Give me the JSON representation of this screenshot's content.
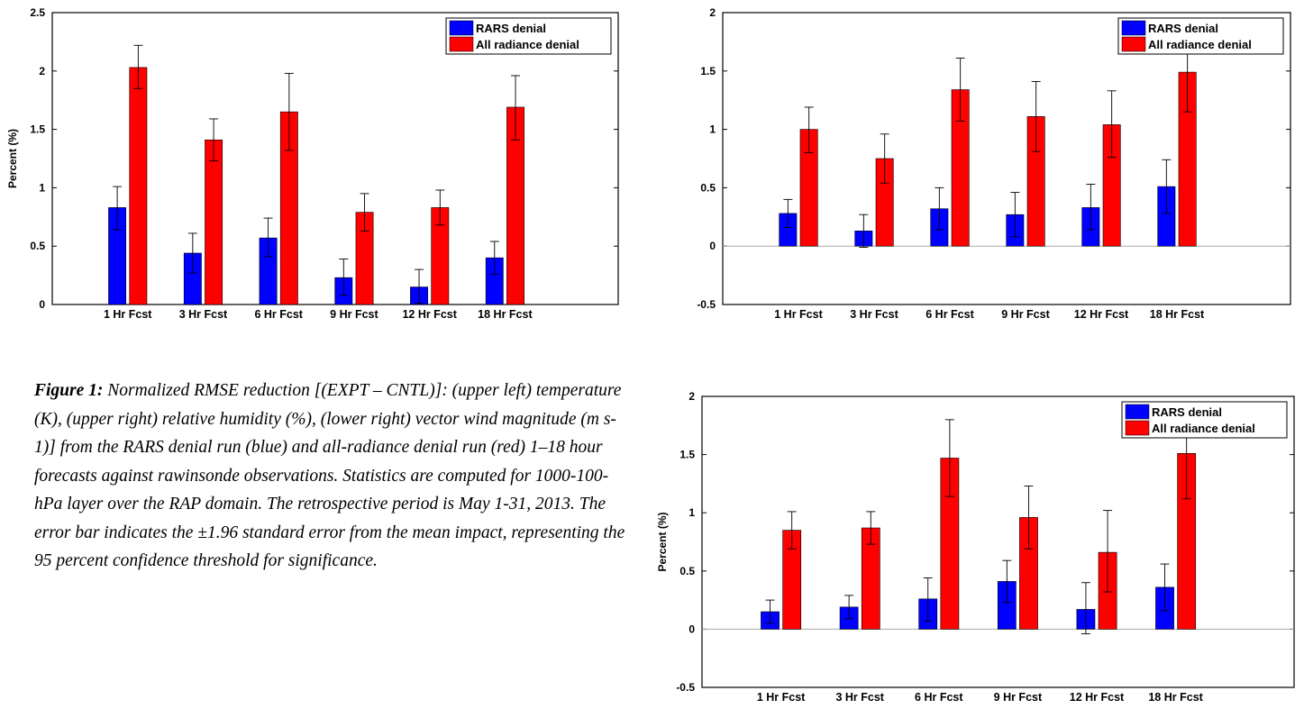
{
  "caption": {
    "label": "Figure 1:",
    "text": " Normalized RMSE reduction [(EXPT – CNTL)]: (upper left) temperature (K), (upper right) relative humidity (%), (lower right) vector wind magnitude (m s-1)] from the RARS denial run (blue) and all-radiance denial run (red) 1–18 hour forecasts against rawinsonde observations. Statistics are computed for 1000-100-hPa layer over the RAP domain. The retrospective period is May 1-31, 2013. The error bar indicates the ±1.96 standard error from the mean impact, representing the 95 percent confidence threshold for significance."
  },
  "colors": {
    "rars": "#0000ff",
    "all": "#ff0000",
    "axis": "#000000",
    "zero_line": "#aaaaaa"
  },
  "chart_data": [
    {
      "type": "bar",
      "categories": [
        "1 Hr Fcst",
        "3 Hr Fcst",
        "6 Hr Fcst",
        "9 Hr Fcst",
        "12 Hr Fcst",
        "18 Hr Fcst"
      ],
      "ylabel": "Percent (%)",
      "ylim": [
        0,
        2.5
      ],
      "yticks": [
        0,
        0.5,
        1,
        1.5,
        2,
        2.5
      ],
      "ytick_labels": [
        "0",
        "0.5",
        "1",
        "1.5",
        "2",
        "2.5"
      ],
      "legend_position": "top-right",
      "error_bars": true,
      "series": [
        {
          "name": "RARS denial",
          "values": [
            0.83,
            0.44,
            0.57,
            0.23,
            0.15,
            0.4
          ],
          "err_low": [
            0.64,
            0.27,
            0.41,
            0.08,
            0.01,
            0.26
          ],
          "err_high": [
            1.01,
            0.61,
            0.74,
            0.39,
            0.3,
            0.54
          ]
        },
        {
          "name": "All radiance denial",
          "values": [
            2.03,
            1.41,
            1.65,
            0.79,
            0.83,
            1.69
          ],
          "err_low": [
            1.85,
            1.23,
            1.32,
            0.63,
            0.68,
            1.41
          ],
          "err_high": [
            2.22,
            1.59,
            1.98,
            0.95,
            0.98,
            1.96
          ]
        }
      ]
    },
    {
      "type": "bar",
      "categories": [
        "1 Hr Fcst",
        "3 Hr Fcst",
        "6 Hr Fcst",
        "9 Hr Fcst",
        "12 Hr Fcst",
        "18 Hr Fcst"
      ],
      "ylabel": "",
      "ylim": [
        -0.5,
        2
      ],
      "yticks": [
        -0.5,
        0,
        0.5,
        1,
        1.5,
        2
      ],
      "ytick_labels": [
        "-0.5",
        "0",
        "0.5",
        "1",
        "1.5",
        "2"
      ],
      "legend_position": "top-right",
      "error_bars": true,
      "series": [
        {
          "name": "RARS denial",
          "values": [
            0.28,
            0.13,
            0.32,
            0.27,
            0.33,
            0.51
          ],
          "err_low": [
            0.16,
            -0.01,
            0.14,
            0.08,
            0.14,
            0.28
          ],
          "err_high": [
            0.4,
            0.27,
            0.5,
            0.46,
            0.53,
            0.74
          ]
        },
        {
          "name": "All radiance denial",
          "values": [
            1.0,
            0.75,
            1.34,
            1.11,
            1.04,
            1.49
          ],
          "err_low": [
            0.8,
            0.54,
            1.07,
            0.81,
            0.76,
            1.15
          ],
          "err_high": [
            1.19,
            0.96,
            1.61,
            1.41,
            1.33,
            1.84
          ]
        }
      ]
    },
    {
      "type": "bar",
      "categories": [
        "1 Hr Fcst",
        "3 Hr Fcst",
        "6 Hr Fcst",
        "9 Hr Fcst",
        "12 Hr Fcst",
        "18 Hr Fcst"
      ],
      "ylabel": "Percent (%)",
      "ylim": [
        -0.5,
        2
      ],
      "yticks": [
        -0.5,
        0,
        0.5,
        1,
        1.5,
        2
      ],
      "ytick_labels": [
        "-0.5",
        "0",
        "0.5",
        "1",
        "1.5",
        "2"
      ],
      "legend_position": "top-right",
      "error_bars": true,
      "series": [
        {
          "name": "RARS denial",
          "values": [
            0.15,
            0.19,
            0.26,
            0.41,
            0.17,
            0.36
          ],
          "err_low": [
            0.05,
            0.09,
            0.07,
            0.23,
            -0.04,
            0.16
          ],
          "err_high": [
            0.25,
            0.29,
            0.44,
            0.59,
            0.4,
            0.56
          ]
        },
        {
          "name": "All radiance denial",
          "values": [
            0.85,
            0.87,
            1.47,
            0.96,
            0.66,
            1.51
          ],
          "err_low": [
            0.69,
            0.73,
            1.14,
            0.69,
            0.32,
            1.12
          ],
          "err_high": [
            1.01,
            1.01,
            1.8,
            1.23,
            1.02,
            1.9
          ]
        }
      ]
    }
  ]
}
